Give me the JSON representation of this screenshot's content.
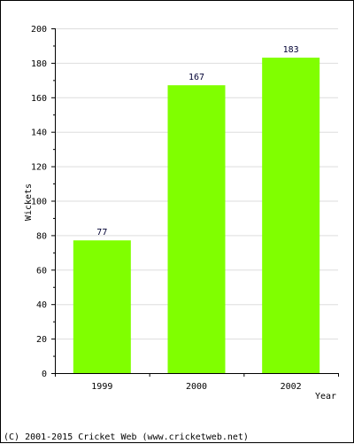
{
  "chart_data": {
    "type": "bar",
    "title": "",
    "xlabel": "Year",
    "ylabel": "Wickets",
    "categories": [
      "1999",
      "2000",
      "2002"
    ],
    "values": [
      77,
      167,
      183
    ],
    "data_labels": [
      "77",
      "167",
      "183"
    ],
    "ylim": [
      0,
      200
    ],
    "yticks": [
      0,
      20,
      40,
      60,
      80,
      100,
      120,
      140,
      160,
      180,
      200
    ],
    "grid": true,
    "bar_color": "#80ff00",
    "grid_color": "#dddddd"
  },
  "footer": {
    "copyright": "(C) 2001-2015 Cricket Web (www.cricketweb.net)"
  }
}
